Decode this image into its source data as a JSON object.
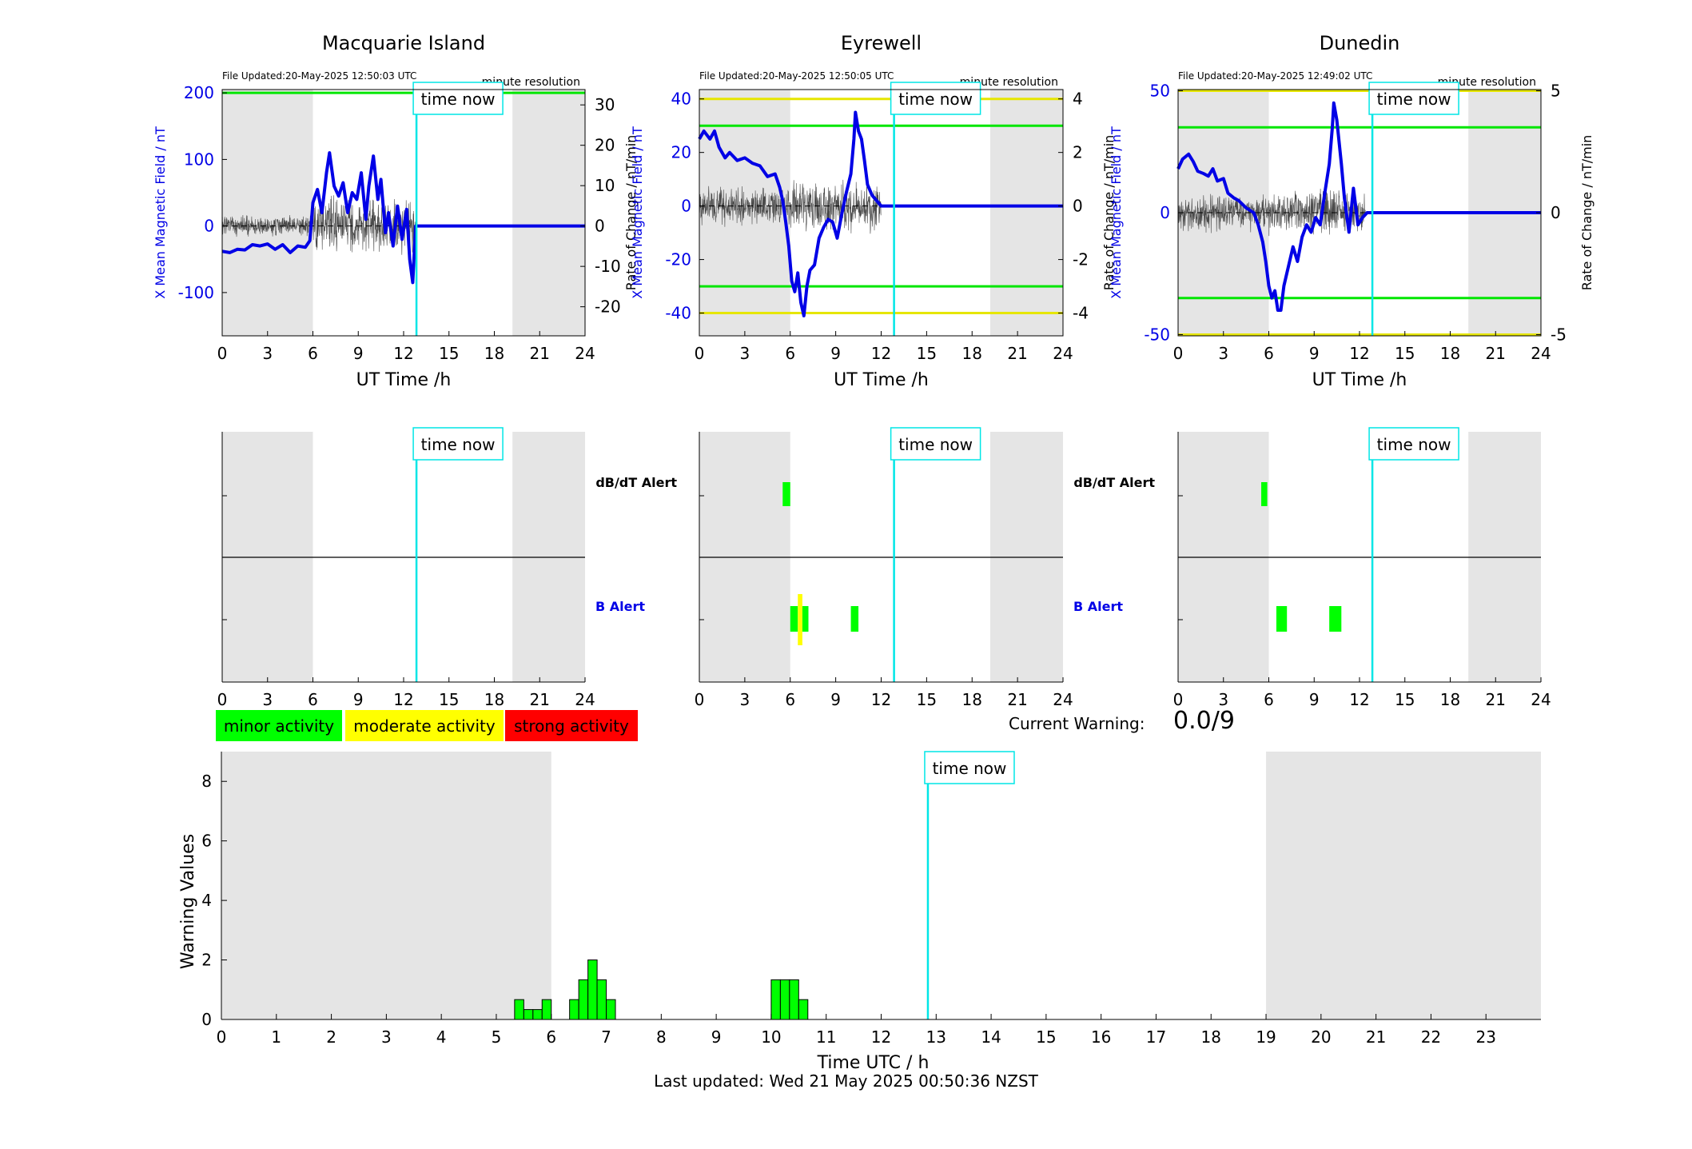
{
  "colors": {
    "background": "#ffffff",
    "night_shading": "#e5e5e5",
    "field_line": "#0000e6",
    "rate_line": "#4a4a4a",
    "time_now": "#00e6e6",
    "minor": "#00ff00",
    "moderate": "#ffff00",
    "strong": "#ff0000",
    "axis": "#000000",
    "blue_text": "#0000e6"
  },
  "time_now_label": "time now",
  "time_now_hour": 12.85,
  "common": {
    "file_note_prefix": "File Updated:",
    "resolution": "minute resolution",
    "xlabel": "UT Time /h",
    "ylabel_left": "X Mean Magnetic Field / nT",
    "ylabel_right": "Rate of Change / nT/min",
    "x_ticks": [
      "0",
      "3",
      "6",
      "9",
      "12",
      "15",
      "18",
      "21",
      "24"
    ],
    "alert_row_db": "dB/dT Alert",
    "alert_row_b": "B Alert"
  },
  "stations": [
    {
      "name": "Macquarie Island",
      "file_updated": "20-May-2025 12:50:03 UTC",
      "night_intervals": [
        [
          0,
          6
        ],
        [
          19.2,
          24
        ]
      ],
      "ylim_left": [
        -165,
        205
      ],
      "ylim_right": [
        -27.2,
        33.8
      ],
      "y_ticks_left": [
        "-100",
        "0",
        "100",
        "200"
      ],
      "y_ticks_right": [
        "-20",
        "-10",
        "0",
        "10",
        "20",
        "30"
      ],
      "thresholds": [
        {
          "value": 200,
          "color": "#00e600"
        }
      ],
      "field_points": [
        [
          0,
          -38
        ],
        [
          0.5,
          -40
        ],
        [
          1,
          -35
        ],
        [
          1.5,
          -36
        ],
        [
          2,
          -28
        ],
        [
          2.5,
          -30
        ],
        [
          3,
          -27
        ],
        [
          3.5,
          -35
        ],
        [
          4,
          -28
        ],
        [
          4.5,
          -40
        ],
        [
          5,
          -30
        ],
        [
          5.5,
          -32
        ],
        [
          5.8,
          -22
        ],
        [
          6,
          35
        ],
        [
          6.3,
          55
        ],
        [
          6.6,
          20
        ],
        [
          6.9,
          80
        ],
        [
          7.1,
          110
        ],
        [
          7.4,
          60
        ],
        [
          7.7,
          45
        ],
        [
          8,
          65
        ],
        [
          8.3,
          20
        ],
        [
          8.6,
          50
        ],
        [
          8.9,
          40
        ],
        [
          9.2,
          80
        ],
        [
          9.5,
          10
        ],
        [
          9.7,
          60
        ],
        [
          10,
          105
        ],
        [
          10.3,
          40
        ],
        [
          10.5,
          70
        ],
        [
          10.8,
          -10
        ],
        [
          11,
          20
        ],
        [
          11.3,
          -30
        ],
        [
          11.6,
          30
        ],
        [
          11.9,
          -20
        ],
        [
          12.2,
          25
        ],
        [
          12.4,
          -50
        ],
        [
          12.6,
          -85
        ],
        [
          12.8,
          0
        ],
        [
          24,
          0
        ]
      ],
      "rate_seed": 1,
      "rate_amp_day": 7.0,
      "rate_amp_night": 2.5,
      "rate_end": 12.8,
      "db_alerts": [],
      "b_alerts": []
    },
    {
      "name": "Eyrewell",
      "file_updated": "20-May-2025 12:50:05 UTC",
      "night_intervals": [
        [
          0,
          6
        ],
        [
          19.2,
          24
        ]
      ],
      "ylim_left": [
        -48.5,
        43.5
      ],
      "ylim_right": [
        -4.85,
        4.35
      ],
      "y_ticks_left": [
        "-40",
        "-20",
        "0",
        "20",
        "40"
      ],
      "y_ticks_right": [
        "-4",
        "-2",
        "0",
        "2",
        "4"
      ],
      "thresholds": [
        {
          "value": 40,
          "color": "#e6e600"
        },
        {
          "value": 30,
          "color": "#00e600"
        },
        {
          "value": -30,
          "color": "#00e600"
        },
        {
          "value": -40,
          "color": "#e6e600"
        }
      ],
      "field_points": [
        [
          0,
          25
        ],
        [
          0.3,
          28
        ],
        [
          0.7,
          25
        ],
        [
          1,
          28
        ],
        [
          1.3,
          22
        ],
        [
          1.7,
          18
        ],
        [
          2,
          20
        ],
        [
          2.5,
          17
        ],
        [
          3,
          18
        ],
        [
          3.5,
          16
        ],
        [
          4,
          15
        ],
        [
          4.5,
          11
        ],
        [
          5,
          12
        ],
        [
          5.3,
          7
        ],
        [
          5.5,
          2
        ],
        [
          5.7,
          -6
        ],
        [
          5.9,
          -15
        ],
        [
          6.1,
          -28
        ],
        [
          6.3,
          -32
        ],
        [
          6.5,
          -25
        ],
        [
          6.7,
          -36
        ],
        [
          6.9,
          -41
        ],
        [
          7.1,
          -30
        ],
        [
          7.3,
          -24
        ],
        [
          7.6,
          -22
        ],
        [
          7.9,
          -12
        ],
        [
          8.2,
          -8
        ],
        [
          8.5,
          -5
        ],
        [
          8.8,
          -6
        ],
        [
          9.1,
          -12
        ],
        [
          9.4,
          -3
        ],
        [
          9.7,
          5
        ],
        [
          10,
          12
        ],
        [
          10.2,
          25
        ],
        [
          10.3,
          35
        ],
        [
          10.5,
          28
        ],
        [
          10.7,
          25
        ],
        [
          10.9,
          17
        ],
        [
          11.1,
          8
        ],
        [
          11.4,
          4
        ],
        [
          11.7,
          2
        ],
        [
          12,
          0
        ],
        [
          12.85,
          0
        ],
        [
          24,
          0
        ]
      ],
      "rate_seed": 7,
      "rate_amp_day": 0.9,
      "rate_amp_night": 0.7,
      "rate_end": 12.0,
      "db_alerts": [
        {
          "start": 5.5,
          "end": 6.0,
          "color": "#00ff00"
        }
      ],
      "b_alerts": [
        {
          "start": 6.0,
          "end": 6.5,
          "color": "#00ff00"
        },
        {
          "start": 6.5,
          "end": 6.8,
          "color": "#ffff00"
        },
        {
          "start": 6.8,
          "end": 7.2,
          "color": "#00ff00"
        },
        {
          "start": 10.0,
          "end": 10.5,
          "color": "#00ff00"
        }
      ]
    },
    {
      "name": "Dunedin",
      "file_updated": "20-May-2025 12:49:02 UTC",
      "night_intervals": [
        [
          0,
          6
        ],
        [
          19.2,
          24
        ]
      ],
      "ylim_left": [
        -50.5,
        50.5
      ],
      "ylim_right": [
        -5.05,
        5.05
      ],
      "y_ticks_left": [
        "-50",
        "0",
        "50"
      ],
      "y_ticks_right": [
        "-5",
        "0",
        "5"
      ],
      "thresholds": [
        {
          "value": 50,
          "color": "#e6e600"
        },
        {
          "value": 35,
          "color": "#00e600"
        },
        {
          "value": -35,
          "color": "#00e600"
        },
        {
          "value": -50,
          "color": "#e6e600"
        }
      ],
      "field_points": [
        [
          0,
          18
        ],
        [
          0.3,
          22
        ],
        [
          0.7,
          24
        ],
        [
          1,
          21
        ],
        [
          1.3,
          17
        ],
        [
          1.7,
          16
        ],
        [
          2,
          15
        ],
        [
          2.3,
          18
        ],
        [
          2.6,
          13
        ],
        [
          3,
          14
        ],
        [
          3.3,
          8
        ],
        [
          3.7,
          6
        ],
        [
          4,
          5
        ],
        [
          4.5,
          2
        ],
        [
          5,
          0
        ],
        [
          5.3,
          -5
        ],
        [
          5.6,
          -12
        ],
        [
          5.8,
          -20
        ],
        [
          6,
          -30
        ],
        [
          6.2,
          -35
        ],
        [
          6.4,
          -32
        ],
        [
          6.6,
          -40
        ],
        [
          6.8,
          -40
        ],
        [
          7,
          -30
        ],
        [
          7.3,
          -22
        ],
        [
          7.6,
          -14
        ],
        [
          7.9,
          -20
        ],
        [
          8.2,
          -10
        ],
        [
          8.5,
          -5
        ],
        [
          8.8,
          -8
        ],
        [
          9.1,
          -2
        ],
        [
          9.4,
          -5
        ],
        [
          9.7,
          8
        ],
        [
          10,
          20
        ],
        [
          10.2,
          35
        ],
        [
          10.3,
          45
        ],
        [
          10.5,
          38
        ],
        [
          10.8,
          20
        ],
        [
          11,
          6
        ],
        [
          11.3,
          -8
        ],
        [
          11.6,
          10
        ],
        [
          11.9,
          -5
        ],
        [
          12.2,
          -2
        ],
        [
          12.5,
          0
        ],
        [
          12.85,
          0
        ],
        [
          24,
          0
        ]
      ],
      "rate_seed": 13,
      "rate_amp_day": 0.9,
      "rate_amp_night": 0.7,
      "rate_end": 12.4,
      "db_alerts": [
        {
          "start": 5.5,
          "end": 5.9,
          "color": "#00ff00"
        }
      ],
      "b_alerts": [
        {
          "start": 6.5,
          "end": 7.2,
          "color": "#00ff00"
        },
        {
          "start": 10.0,
          "end": 10.8,
          "color": "#00ff00"
        }
      ]
    }
  ],
  "legend": {
    "minor": "minor activity",
    "moderate": "moderate activity",
    "strong": "strong activity"
  },
  "current_warning": {
    "label": "Current Warning:",
    "value": "0.0/9"
  },
  "chart_data": [
    {
      "type": "bar",
      "title": "",
      "xlabel": "Time UTC / h",
      "ylabel": "Warning Values",
      "xlim": [
        0,
        24
      ],
      "ylim": [
        0,
        9
      ],
      "x_ticks": [
        "0",
        "1",
        "2",
        "3",
        "4",
        "5",
        "6",
        "7",
        "8",
        "9",
        "10",
        "11",
        "12",
        "13",
        "14",
        "15",
        "16",
        "17",
        "18",
        "19",
        "20",
        "21",
        "22",
        "23"
      ],
      "y_ticks": [
        "0",
        "2",
        "4",
        "6",
        "8"
      ],
      "bar_width_hours": 0.1667,
      "bar_starts": [
        5.333,
        5.5,
        5.667,
        5.833,
        6.333,
        6.5,
        6.667,
        6.833,
        7.0,
        10.0,
        10.167,
        10.333,
        10.5
      ],
      "values": [
        0.667,
        0.333,
        0.333,
        0.667,
        0.667,
        1.333,
        2.0,
        1.333,
        0.667,
        1.333,
        1.333,
        1.333,
        0.667
      ],
      "night_intervals": [
        [
          0,
          6
        ],
        [
          19,
          24
        ]
      ],
      "time_now_hour": 12.85,
      "grid": false
    }
  ],
  "footer": {
    "last_updated": "Last updated: Wed 21 May 2025 00:50:36 NZST"
  }
}
